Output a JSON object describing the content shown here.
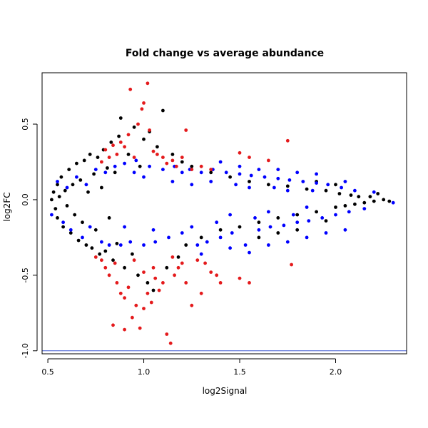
{
  "chart_data": {
    "type": "scatter",
    "title": "Fold change vs average abundance",
    "xlabel": "log2Signal",
    "ylabel": "log2FC",
    "xlim": [
      0.47,
      2.37
    ],
    "ylim": [
      -1.02,
      0.84
    ],
    "xticks": [
      0.5,
      1.0,
      1.5,
      2.0
    ],
    "xtick_labels": [
      "0.5",
      "1.0",
      "1.5",
      "2.0"
    ],
    "yticks": [
      -1.0,
      -0.5,
      0.0,
      0.5
    ],
    "ytick_labels": [
      "-1.0",
      "-0.5",
      "0.0",
      "0.5"
    ],
    "grid": false,
    "legend": "none",
    "hline": {
      "y": -1.0,
      "color": "#3a55d0"
    },
    "series": [
      {
        "color": "#000000",
        "points": [
          [
            0.52,
            0.0
          ],
          [
            0.53,
            0.05
          ],
          [
            0.54,
            -0.06
          ],
          [
            0.55,
            0.1
          ],
          [
            0.55,
            -0.12
          ],
          [
            0.56,
            0.02
          ],
          [
            0.57,
            0.15
          ],
          [
            0.58,
            -0.18
          ],
          [
            0.59,
            0.06
          ],
          [
            0.6,
            -0.04
          ],
          [
            0.61,
            0.2
          ],
          [
            0.62,
            -0.22
          ],
          [
            0.63,
            0.1
          ],
          [
            0.64,
            -0.1
          ],
          [
            0.65,
            0.24
          ],
          [
            0.66,
            -0.27
          ],
          [
            0.67,
            0.13
          ],
          [
            0.68,
            -0.15
          ],
          [
            0.69,
            0.26
          ],
          [
            0.7,
            -0.3
          ],
          [
            0.71,
            0.05
          ],
          [
            0.72,
            0.3
          ],
          [
            0.73,
            -0.32
          ],
          [
            0.74,
            0.17
          ],
          [
            0.75,
            -0.2
          ],
          [
            0.76,
            0.28
          ],
          [
            0.77,
            -0.36
          ],
          [
            0.78,
            0.08
          ],
          [
            0.79,
            0.33
          ],
          [
            0.8,
            -0.34
          ],
          [
            0.81,
            0.21
          ],
          [
            0.82,
            -0.12
          ],
          [
            0.83,
            0.38
          ],
          [
            0.84,
            -0.4
          ],
          [
            0.85,
            0.18
          ],
          [
            0.86,
            -0.29
          ],
          [
            0.87,
            0.42
          ],
          [
            0.88,
            0.54
          ],
          [
            0.9,
            -0.45
          ],
          [
            0.92,
            0.3
          ],
          [
            0.94,
            -0.36
          ],
          [
            0.95,
            0.48
          ],
          [
            0.97,
            -0.5
          ],
          [
            0.98,
            0.22
          ],
          [
            1.0,
            0.4
          ],
          [
            1.02,
            -0.55
          ],
          [
            1.03,
            0.45
          ],
          [
            1.05,
            -0.6
          ],
          [
            1.07,
            0.35
          ],
          [
            1.1,
            0.59
          ],
          [
            1.12,
            -0.45
          ],
          [
            1.15,
            0.3
          ],
          [
            1.18,
            -0.38
          ],
          [
            1.2,
            0.25
          ],
          [
            1.22,
            -0.3
          ],
          [
            1.25,
            0.22
          ],
          [
            1.3,
            -0.25
          ],
          [
            1.35,
            0.18
          ],
          [
            1.4,
            -0.2
          ],
          [
            1.45,
            0.15
          ],
          [
            1.5,
            -0.18
          ],
          [
            1.55,
            0.12
          ],
          [
            1.6,
            -0.15
          ],
          [
            1.65,
            0.1
          ],
          [
            1.7,
            -0.12
          ],
          [
            1.75,
            0.09
          ],
          [
            1.8,
            -0.1
          ],
          [
            1.85,
            0.07
          ],
          [
            1.9,
            -0.08
          ],
          [
            1.95,
            0.06
          ],
          [
            2.0,
            -0.05
          ],
          [
            2.02,
            0.04
          ],
          [
            2.05,
            -0.04
          ],
          [
            2.08,
            0.03
          ],
          [
            2.1,
            -0.03
          ],
          [
            2.12,
            0.02
          ],
          [
            2.15,
            -0.02
          ],
          [
            2.18,
            0.02
          ],
          [
            2.2,
            -0.01
          ],
          [
            2.22,
            0.04
          ],
          [
            2.25,
            0.0
          ],
          [
            2.28,
            -0.01
          ],
          [
            1.6,
            -0.25
          ],
          [
            1.7,
            -0.22
          ],
          [
            1.8,
            -0.2
          ],
          [
            1.9,
            0.12
          ],
          [
            1.95,
            -0.14
          ],
          [
            2.0,
            0.1
          ]
        ]
      },
      {
        "color": "#0000ff",
        "points": [
          [
            0.52,
            -0.1
          ],
          [
            0.55,
            0.12
          ],
          [
            0.58,
            -0.15
          ],
          [
            0.6,
            0.08
          ],
          [
            0.62,
            -0.2
          ],
          [
            0.65,
            0.15
          ],
          [
            0.68,
            -0.25
          ],
          [
            0.7,
            0.1
          ],
          [
            0.72,
            -0.18
          ],
          [
            0.75,
            0.2
          ],
          [
            0.78,
            -0.28
          ],
          [
            0.8,
            0.18
          ],
          [
            0.82,
            -0.3
          ],
          [
            0.85,
            0.22
          ],
          [
            0.88,
            -0.3
          ],
          [
            0.9,
            0.24
          ],
          [
            0.93,
            -0.28
          ],
          [
            0.96,
            0.26
          ],
          [
            1.0,
            -0.3
          ],
          [
            1.03,
            0.22
          ],
          [
            1.06,
            -0.28
          ],
          [
            1.1,
            0.2
          ],
          [
            1.13,
            -0.25
          ],
          [
            1.16,
            0.22
          ],
          [
            1.2,
            -0.22
          ],
          [
            1.24,
            0.2
          ],
          [
            1.28,
            -0.3
          ],
          [
            1.3,
            0.18
          ],
          [
            1.33,
            -0.28
          ],
          [
            1.36,
            0.2
          ],
          [
            1.4,
            -0.25
          ],
          [
            1.43,
            0.18
          ],
          [
            1.46,
            -0.22
          ],
          [
            1.5,
            0.17
          ],
          [
            1.53,
            -0.3
          ],
          [
            1.56,
            0.16
          ],
          [
            1.6,
            -0.2
          ],
          [
            1.63,
            0.15
          ],
          [
            1.66,
            -0.18
          ],
          [
            1.7,
            0.14
          ],
          [
            1.73,
            -0.17
          ],
          [
            1.76,
            0.13
          ],
          [
            1.8,
            -0.15
          ],
          [
            1.83,
            0.12
          ],
          [
            1.86,
            -0.14
          ],
          [
            1.9,
            0.11
          ],
          [
            1.93,
            -0.12
          ],
          [
            1.96,
            0.1
          ],
          [
            2.0,
            -0.1
          ],
          [
            2.03,
            0.08
          ],
          [
            2.07,
            -0.08
          ],
          [
            2.1,
            0.06
          ],
          [
            2.15,
            -0.06
          ],
          [
            2.2,
            0.05
          ],
          [
            2.3,
            -0.02
          ],
          [
            1.3,
            -0.36
          ],
          [
            1.45,
            -0.32
          ],
          [
            1.55,
            -0.35
          ],
          [
            1.65,
            -0.3
          ],
          [
            1.75,
            -0.28
          ],
          [
            1.85,
            -0.25
          ],
          [
            1.95,
            -0.22
          ],
          [
            2.05,
            -0.2
          ],
          [
            1.4,
            0.25
          ],
          [
            1.5,
            0.22
          ],
          [
            1.6,
            0.2
          ],
          [
            1.7,
            0.2
          ],
          [
            1.8,
            0.18
          ],
          [
            1.9,
            0.17
          ],
          [
            2.05,
            0.12
          ],
          [
            1.2,
            0.18
          ],
          [
            1.25,
            -0.18
          ],
          [
            1.35,
            0.12
          ],
          [
            1.45,
            -0.1
          ],
          [
            1.55,
            0.08
          ],
          [
            1.65,
            -0.08
          ],
          [
            1.75,
            0.06
          ],
          [
            1.85,
            -0.05
          ],
          [
            1.0,
            0.15
          ],
          [
            1.05,
            -0.2
          ],
          [
            0.9,
            -0.18
          ],
          [
            0.95,
            0.18
          ],
          [
            1.15,
            0.12
          ],
          [
            1.25,
            0.1
          ],
          [
            1.38,
            -0.15
          ],
          [
            1.48,
            0.1
          ],
          [
            1.58,
            -0.12
          ],
          [
            1.68,
            0.08
          ],
          [
            1.78,
            -0.1
          ],
          [
            1.88,
            0.06
          ]
        ]
      },
      {
        "color": "#e41a1c",
        "points": [
          [
            0.78,
            0.25
          ],
          [
            0.8,
            0.33
          ],
          [
            0.82,
            0.28
          ],
          [
            0.84,
            0.36
          ],
          [
            0.86,
            0.3
          ],
          [
            0.88,
            0.38
          ],
          [
            0.9,
            0.35
          ],
          [
            0.92,
            0.43
          ],
          [
            0.93,
            0.73
          ],
          [
            0.95,
            0.28
          ],
          [
            0.97,
            0.5
          ],
          [
            0.99,
            0.6
          ],
          [
            1.0,
            0.64
          ],
          [
            1.02,
            0.77
          ],
          [
            1.03,
            0.46
          ],
          [
            1.05,
            0.32
          ],
          [
            1.07,
            0.3
          ],
          [
            1.1,
            0.28
          ],
          [
            1.12,
            0.24
          ],
          [
            1.15,
            0.26
          ],
          [
            1.17,
            0.22
          ],
          [
            1.2,
            0.28
          ],
          [
            1.22,
            0.46
          ],
          [
            1.25,
            0.2
          ],
          [
            1.3,
            0.22
          ],
          [
            1.35,
            0.2
          ],
          [
            1.5,
            0.31
          ],
          [
            1.55,
            0.28
          ],
          [
            1.65,
            0.26
          ],
          [
            1.75,
            0.39
          ],
          [
            0.78,
            -0.4
          ],
          [
            0.8,
            -0.45
          ],
          [
            0.82,
            -0.5
          ],
          [
            0.84,
            -0.83
          ],
          [
            0.86,
            -0.55
          ],
          [
            0.88,
            -0.62
          ],
          [
            0.9,
            -0.86
          ],
          [
            0.92,
            -0.58
          ],
          [
            0.94,
            -0.78
          ],
          [
            0.96,
            -0.7
          ],
          [
            0.98,
            -0.85
          ],
          [
            1.0,
            -0.48
          ],
          [
            1.02,
            -0.62
          ],
          [
            1.04,
            -0.68
          ],
          [
            1.06,
            -0.52
          ],
          [
            1.08,
            -0.6
          ],
          [
            1.1,
            -0.55
          ],
          [
            1.12,
            -0.89
          ],
          [
            1.14,
            -0.95
          ],
          [
            1.16,
            -0.5
          ],
          [
            1.18,
            -0.45
          ],
          [
            1.2,
            -0.42
          ],
          [
            1.25,
            -0.7
          ],
          [
            1.28,
            -0.4
          ],
          [
            1.3,
            -0.62
          ],
          [
            1.35,
            -0.48
          ],
          [
            1.4,
            -0.55
          ],
          [
            1.5,
            -0.52
          ],
          [
            1.55,
            -0.55
          ],
          [
            1.77,
            -0.43
          ],
          [
            0.75,
            -0.38
          ],
          [
            0.85,
            -0.42
          ],
          [
            0.95,
            -0.4
          ],
          [
            1.05,
            -0.45
          ],
          [
            1.15,
            -0.38
          ],
          [
            1.22,
            -0.55
          ],
          [
            1.32,
            -0.42
          ],
          [
            1.38,
            -0.5
          ],
          [
            0.9,
            -0.65
          ],
          [
            1.0,
            -0.72
          ]
        ]
      }
    ]
  }
}
